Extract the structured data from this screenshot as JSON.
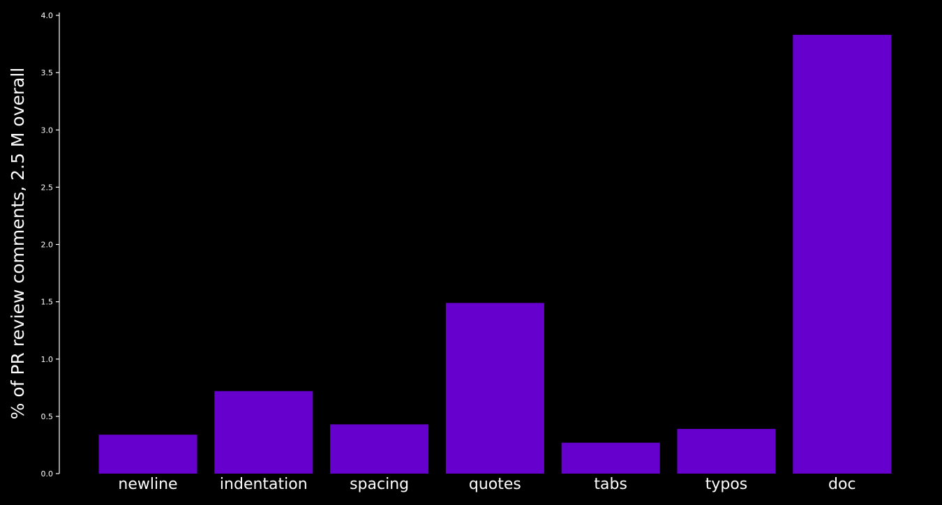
{
  "chart_data": {
    "type": "bar",
    "title": "",
    "xlabel": "",
    "ylabel": "% of PR review comments, 2.5 M overall",
    "categories": [
      "newline",
      "indentation",
      "spacing",
      "quotes",
      "tabs",
      "typos",
      "doc"
    ],
    "values": [
      0.34,
      0.72,
      0.43,
      1.49,
      0.27,
      0.39,
      3.83
    ],
    "ylim": [
      0,
      4.0
    ],
    "yticks": [
      "0.0",
      "0.5",
      "1.0",
      "1.5",
      "2.0",
      "2.5",
      "3.0",
      "3.5",
      "4.0"
    ],
    "grid": false,
    "legend": "none",
    "colors": {
      "background": "#000000",
      "bar": "#6600cc",
      "axis": "#ffffff",
      "text": "#ffffff"
    }
  }
}
